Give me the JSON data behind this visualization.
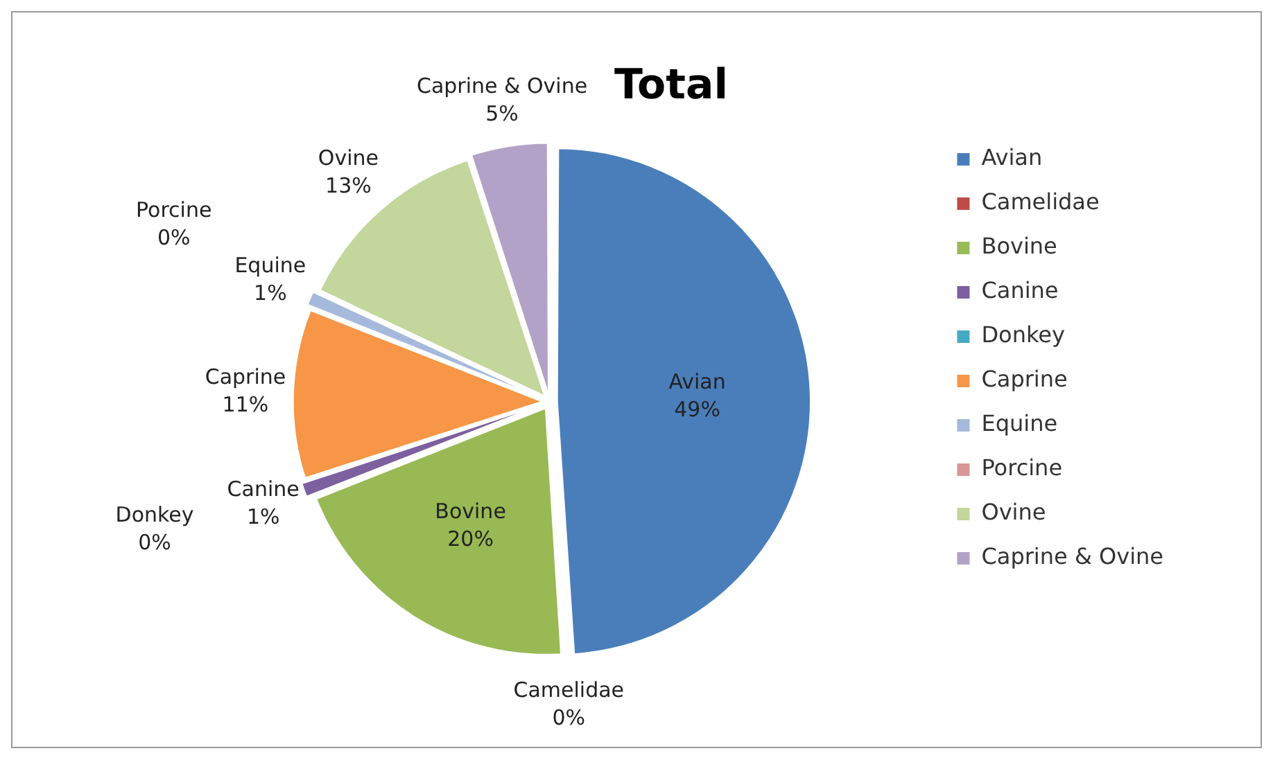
{
  "chart_data": {
    "type": "pie",
    "title": "Total",
    "categories": [
      "Avian",
      "Camelidae",
      "Bovine",
      "Canine",
      "Donkey",
      "Caprine",
      "Equine",
      "Porcine",
      "Ovine",
      "Caprine & Ovine"
    ],
    "values": [
      49,
      0,
      20,
      1,
      0,
      11,
      1,
      0,
      13,
      5
    ],
    "value_labels": [
      "49%",
      "0%",
      "20%",
      "1%",
      "0%",
      "11%",
      "1%",
      "0%",
      "13%",
      "5%"
    ],
    "colors": [
      "#4a7ebb",
      "#be4b48",
      "#98b954",
      "#7d60a0",
      "#46aac5",
      "#f79646",
      "#a5b9dc",
      "#d99694",
      "#c3d69b",
      "#b3a2c7"
    ],
    "legend": "right"
  }
}
